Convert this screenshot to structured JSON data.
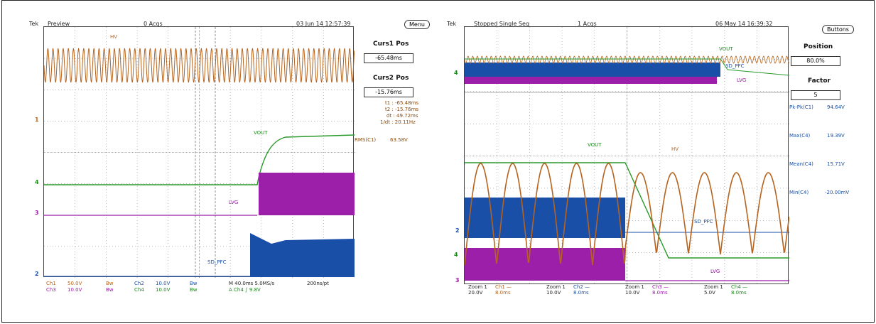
{
  "left": {
    "brand": "Tek",
    "status": "Preview",
    "acqs": "0 Acqs",
    "datetime": "03 Jun 14 12:57:39",
    "menu_button": "Menu",
    "curs1_title": "Curs1 Pos",
    "curs1_value": "-65.48ms",
    "curs2_title": "Curs2 Pos",
    "curs2_value": "-15.76ms",
    "readouts": {
      "t1": "t1 :  -65.48ms",
      "t2": "t2 :  -15.76ms",
      "dt": "dt :   49.72ms",
      "inv_dt": "1/dt :  20.11Hz"
    },
    "rms_label": "RMS(C1)",
    "rms_value": "63.58V",
    "trace_labels": {
      "hv": "HV",
      "vout": "VOUT",
      "lvg": "LVG",
      "sd_pfc": "SD_PFC"
    },
    "markers": {
      "m1": "1",
      "m4": "4",
      "m3": "3",
      "m2": "2"
    },
    "bottom": {
      "ch1": "Ch1",
      "ch1_v": "50.0V",
      "bw1": "Bw",
      "ch2": "Ch2",
      "ch2_v": "10.0V",
      "bw2": "Bw",
      "ch3": "Ch3",
      "ch3_v": "10.0V",
      "bw3": "Bw",
      "ch4": "Ch4",
      "ch4_v": "10.0V",
      "bw4": "Bw",
      "timebase": "M 40.0ms 5.0MS/s",
      "pts": "200ns/pt",
      "trigger": "A  Ch4  ∫  9.8V"
    }
  },
  "right": {
    "brand": "Tek",
    "status": "Stopped  Single Seq",
    "acqs": "1 Acqs",
    "datetime": "06 May 14 16:39:32",
    "buttons_button": "Buttons",
    "position_title": "Position",
    "position_value": "80.0%",
    "factor_title": "Factor",
    "factor_value": "5",
    "measurements": [
      {
        "label": "Pk-Pk(C1)",
        "value": "94.64V"
      },
      {
        "label": "Max(C4)",
        "value": "19.39V"
      },
      {
        "label": "Mean(C4)",
        "value": "15.71V"
      },
      {
        "label": "Min(C4)",
        "value": "-20.00mV"
      }
    ],
    "trace_labels": {
      "vout": "VOUT",
      "hv": "HV",
      "sd_pfc": "SD_PFC",
      "lvg": "LVG",
      "vout_top": "VOUT",
      "sd_pfc_top": "SD_PFC",
      "lvg_top": "LVG"
    },
    "markers": {
      "m4top": "4",
      "m2": "2",
      "m4": "4",
      "m3": "3"
    },
    "zooms": [
      {
        "zoom": "Zoom 1",
        "volts": "20.0V",
        "ch": "Ch1 —",
        "time": "8.0ms"
      },
      {
        "zoom": "Zoom 1",
        "volts": "10.0V",
        "ch": "Ch2 —",
        "time": "8.0ms"
      },
      {
        "zoom": "Zoom 1",
        "volts": "10.0V",
        "ch": "Ch3 —",
        "time": "8.0ms"
      },
      {
        "zoom": "Zoom 1",
        "volts": "5.0V",
        "ch": "Ch4 —",
        "time": "8.0ms"
      }
    ]
  },
  "colors": {
    "hv": "#b5631e",
    "vout": "#2a9a2a",
    "lvg": "#9b1fa8",
    "sd_pfc": "#1a4fa8",
    "grid": "#7a7a7a"
  }
}
